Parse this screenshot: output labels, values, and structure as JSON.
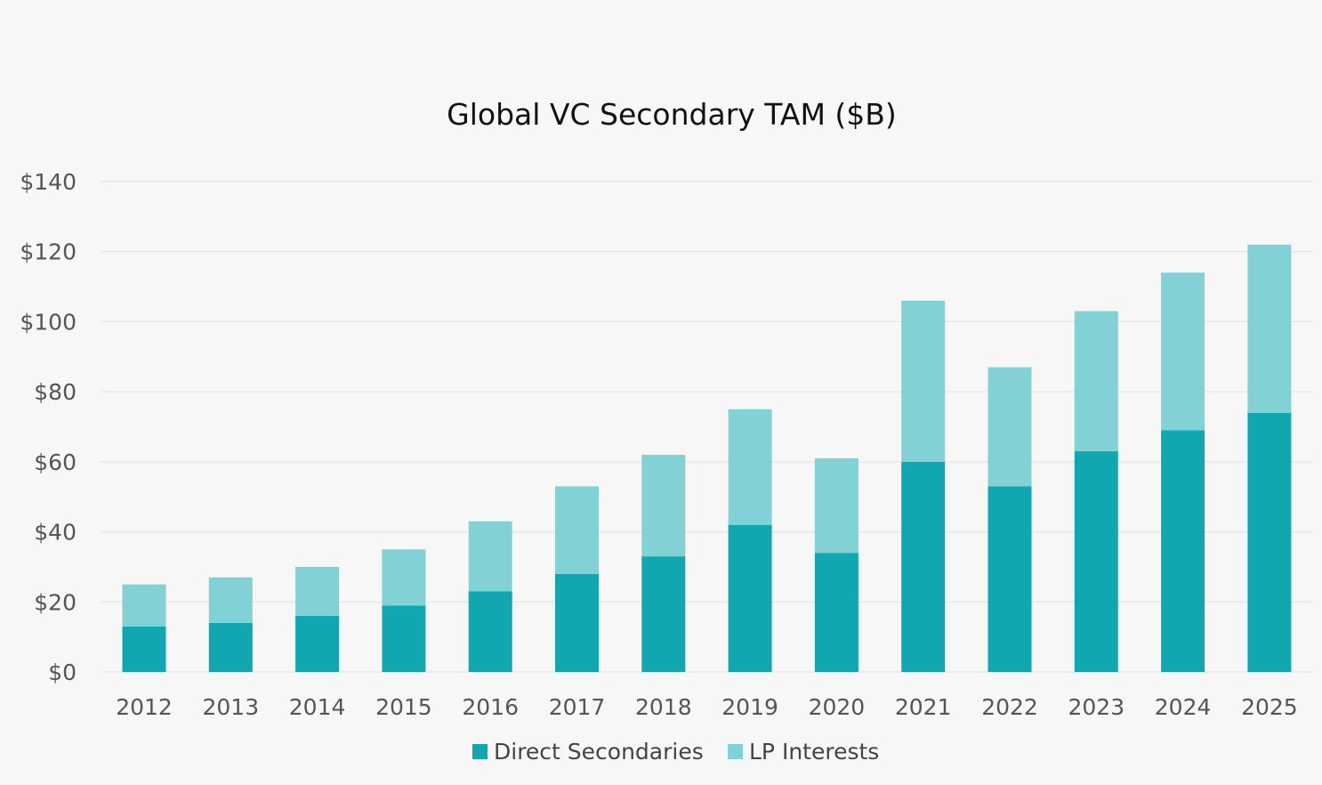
{
  "chart_data": {
    "type": "bar",
    "stacked": true,
    "title": "Global VC Secondary TAM ($B)",
    "xlabel": "",
    "ylabel": "",
    "categories": [
      "2012",
      "2013",
      "2014",
      "2015",
      "2016",
      "2017",
      "2018",
      "2019",
      "2020",
      "2021",
      "2022",
      "2023",
      "2024",
      "2025"
    ],
    "series": [
      {
        "name": "Direct Secondaries",
        "color": "#11a7b0",
        "values": [
          13,
          14,
          16,
          19,
          23,
          28,
          33,
          42,
          34,
          60,
          53,
          63,
          69,
          74
        ]
      },
      {
        "name": "LP Interests",
        "color": "#82d1d5",
        "values": [
          12,
          13,
          14,
          16,
          20,
          25,
          29,
          33,
          27,
          46,
          34,
          40,
          45,
          48
        ]
      }
    ],
    "ylim": [
      0,
      140
    ],
    "yticks": [
      0,
      20,
      40,
      60,
      80,
      100,
      120,
      140
    ],
    "ytick_labels": [
      "$0",
      "$20",
      "$40",
      "$60",
      "$80",
      "$100",
      "$120",
      "$140"
    ],
    "grid": true,
    "legend_position": "bottom-center"
  }
}
